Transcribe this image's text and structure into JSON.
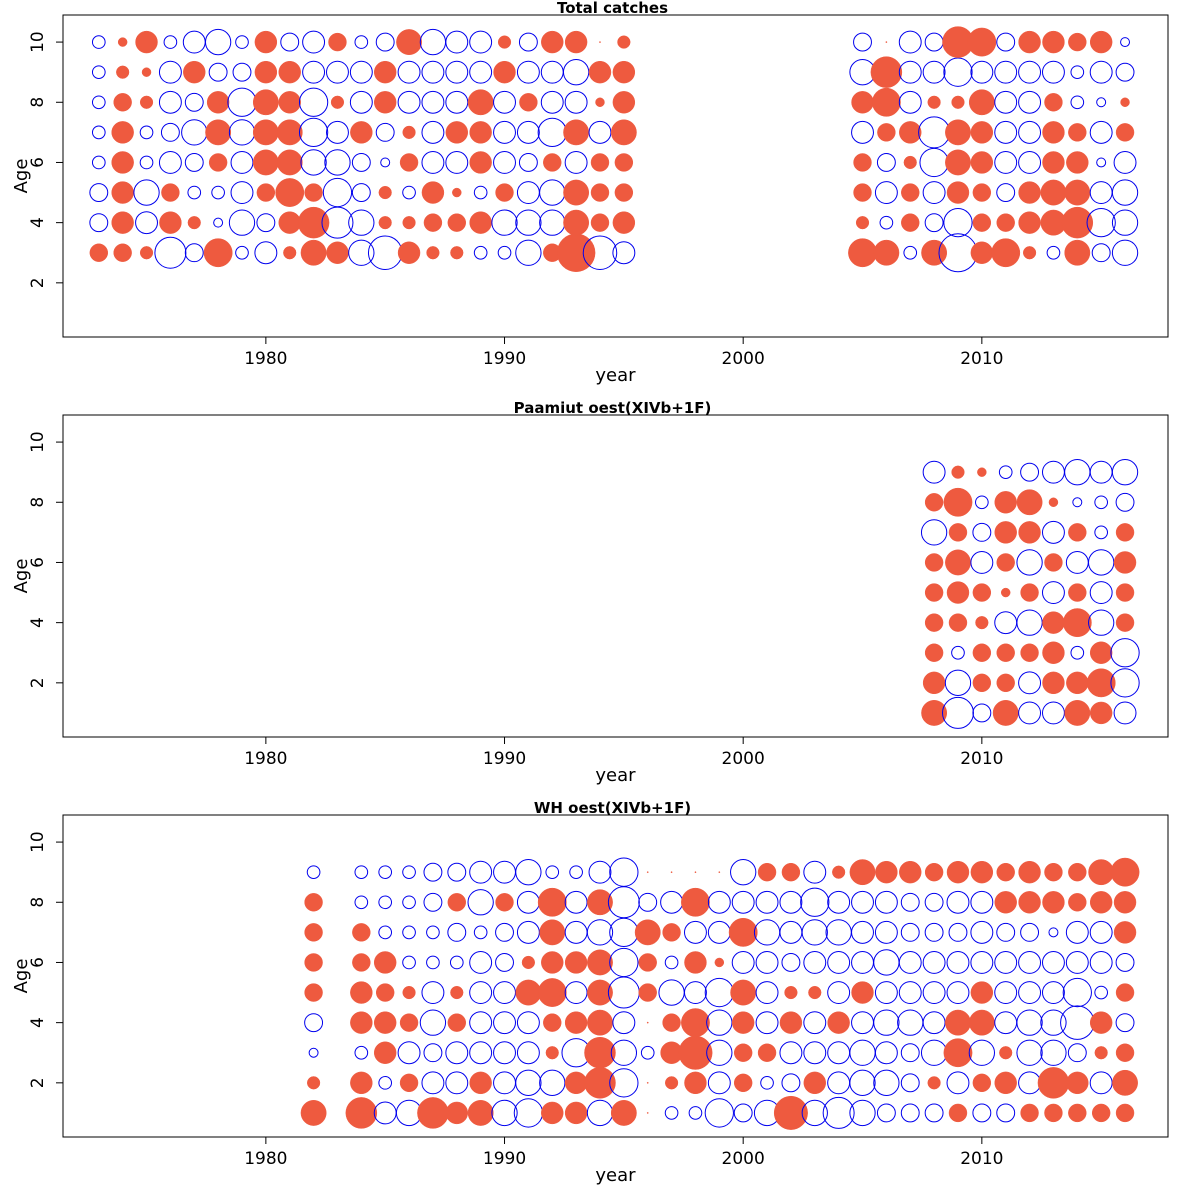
{
  "colors": {
    "positive": "#EE5A3F",
    "negative": "#0000EE"
  },
  "chart_data": [
    {
      "type": "scatter",
      "subtype": "bubble-residuals",
      "title": "Total catches",
      "xlabel": "year",
      "ylabel": "Age",
      "xlim": [
        1971.5,
        2017.8
      ],
      "ylim": [
        0.2,
        10.9
      ],
      "xticks": [
        1980,
        1990,
        2000,
        2010
      ],
      "yticks": [
        2,
        4,
        6,
        8,
        10
      ],
      "ages": [
        3,
        4,
        5,
        6,
        7,
        8,
        9,
        10
      ],
      "years": [
        1973,
        1974,
        1975,
        1976,
        1977,
        1978,
        1979,
        1980,
        1981,
        1982,
        1983,
        1984,
        1985,
        1986,
        1987,
        1988,
        1989,
        1990,
        1991,
        1992,
        1993,
        1994,
        1995,
        2005,
        2006,
        2007,
        2008,
        2009,
        2010,
        2011,
        2012,
        2013,
        2014,
        2015,
        2016
      ],
      "residuals": [
        [
          0.2,
          0.2,
          0.1,
          -0.6,
          -0.2,
          0.5,
          -0.1,
          -0.3,
          0.1,
          0.4,
          0.3,
          -0.4,
          -0.7,
          0.3,
          0.1,
          0.1,
          -0.1,
          -0.1,
          -0.4,
          0.2,
          0.9,
          -0.7,
          -0.3,
          0.5,
          0.4,
          -0.1,
          0.4,
          -0.9,
          0.3,
          0.5,
          0.1,
          -0.1,
          0.4,
          -0.2,
          -0.4
        ],
        [
          -0.2,
          0.3,
          -0.3,
          0.3,
          0.1,
          -0.05,
          -0.4,
          -0.2,
          0.3,
          0.6,
          -0.6,
          -0.4,
          0.1,
          0.1,
          0.2,
          0.2,
          0.3,
          -0.4,
          -0.4,
          -0.4,
          0.4,
          0.2,
          0.3,
          0.1,
          -0.1,
          0.2,
          -0.2,
          -0.5,
          0.2,
          0.2,
          0.3,
          0.4,
          0.6,
          -0.5,
          -0.4
        ],
        [
          -0.2,
          0.3,
          -0.4,
          0.2,
          -0.1,
          -0.1,
          -0.3,
          0.2,
          0.5,
          0.2,
          -0.5,
          -0.2,
          0.1,
          -0.1,
          0.3,
          0.05,
          -0.1,
          0.2,
          -0.3,
          -0.4,
          0.4,
          0.2,
          0.2,
          0.2,
          -0.3,
          0.2,
          -0.3,
          0.3,
          0.2,
          -0.2,
          0.3,
          0.4,
          0.4,
          -0.3,
          -0.4
        ],
        [
          -0.1,
          0.3,
          -0.1,
          -0.3,
          -0.2,
          0.2,
          -0.3,
          0.4,
          0.4,
          -0.4,
          -0.4,
          -0.2,
          -0.05,
          0.2,
          -0.3,
          -0.3,
          0.3,
          -0.3,
          -0.2,
          0.2,
          -0.3,
          0.2,
          0.2,
          0.2,
          -0.2,
          0.1,
          -0.5,
          0.4,
          0.3,
          -0.3,
          -0.3,
          0.3,
          0.3,
          -0.05,
          -0.3
        ],
        [
          -0.1,
          0.3,
          -0.1,
          -0.2,
          -0.4,
          0.4,
          -0.4,
          0.4,
          0.4,
          -0.5,
          -0.3,
          0.3,
          -0.2,
          0.1,
          -0.3,
          0.3,
          0.3,
          -0.3,
          -0.3,
          -0.5,
          0.4,
          -0.3,
          0.4,
          -0.3,
          0.2,
          0.3,
          -0.6,
          0.4,
          0.3,
          -0.3,
          -0.3,
          0.3,
          0.2,
          -0.3,
          0.2
        ],
        [
          -0.1,
          0.2,
          0.1,
          -0.3,
          -0.2,
          0.3,
          -0.5,
          0.4,
          0.3,
          -0.5,
          0.1,
          -0.3,
          0.3,
          -0.3,
          -0.3,
          -0.3,
          0.4,
          -0.3,
          0.2,
          -0.3,
          -0.3,
          0.05,
          0.3,
          0.3,
          0.5,
          -0.3,
          0.1,
          0.1,
          0.4,
          -0.3,
          -0.3,
          0.2,
          -0.1,
          -0.05,
          0.05
        ],
        [
          -0.1,
          0.1,
          0.05,
          -0.3,
          0.3,
          -0.2,
          -0.2,
          0.3,
          0.3,
          -0.3,
          -0.3,
          -0.3,
          0.3,
          -0.3,
          -0.3,
          -0.3,
          -0.3,
          0.3,
          -0.3,
          -0.3,
          -0.4,
          0.3,
          0.3,
          -0.4,
          0.6,
          -0.3,
          -0.3,
          -0.5,
          -0.3,
          -0.3,
          -0.3,
          -0.3,
          -0.1,
          -0.3,
          -0.2
        ],
        [
          -0.1,
          0.05,
          0.3,
          -0.1,
          -0.3,
          -0.4,
          -0.1,
          0.3,
          -0.2,
          -0.3,
          0.2,
          -0.1,
          -0.2,
          0.4,
          -0.4,
          -0.3,
          -0.3,
          0.1,
          -0.2,
          0.3,
          0.3,
          0,
          0.1,
          -0.2,
          0,
          -0.3,
          -0.2,
          0.6,
          0.5,
          -0.2,
          0.3,
          0.3,
          0.2,
          0.3,
          -0.05
        ]
      ]
    },
    {
      "type": "scatter",
      "subtype": "bubble-residuals",
      "title": "Paamiut    oest(XIVb+1F)",
      "xlabel": "year",
      "ylabel": "Age",
      "xlim": [
        1971.5,
        2017.8
      ],
      "ylim": [
        0.2,
        10.9
      ],
      "xticks": [
        1980,
        1990,
        2000,
        2010
      ],
      "yticks": [
        2,
        4,
        6,
        8,
        10
      ],
      "ages": [
        1,
        2,
        3,
        4,
        5,
        6,
        7,
        8,
        9
      ],
      "years": [
        2008,
        2009,
        2010,
        2011,
        2012,
        2013,
        2014,
        2015,
        2016
      ],
      "residuals": [
        [
          0.4,
          -0.6,
          -0.2,
          0.4,
          -0.3,
          -0.3,
          0.4,
          0.3,
          -0.3
        ],
        [
          0.3,
          -0.4,
          0.2,
          0.2,
          -0.3,
          0.3,
          0.3,
          0.5,
          -0.5
        ],
        [
          0.2,
          -0.1,
          0.2,
          0.2,
          0.2,
          0.3,
          -0.1,
          0.3,
          -0.5
        ],
        [
          0.2,
          0.2,
          0.1,
          -0.3,
          -0.4,
          0.3,
          0.5,
          -0.4,
          0.2
        ],
        [
          0.2,
          0.3,
          0.2,
          0.05,
          0.2,
          -0.3,
          0.2,
          -0.3,
          0.2
        ],
        [
          0.2,
          0.4,
          -0.3,
          0.2,
          -0.4,
          0.2,
          -0.3,
          -0.4,
          0.3
        ],
        [
          -0.4,
          0.2,
          -0.2,
          0.3,
          0.3,
          -0.3,
          0.2,
          -0.1,
          0.2
        ],
        [
          0.2,
          0.5,
          -0.1,
          0.3,
          0.4,
          0.05,
          -0.05,
          -0.1,
          -0.2
        ],
        [
          -0.3,
          0.1,
          0.05,
          -0.1,
          -0.2,
          -0.3,
          -0.4,
          -0.3,
          -0.4
        ]
      ]
    },
    {
      "type": "scatter",
      "subtype": "bubble-residuals",
      "title": "WH    oest(XIVb+1F)",
      "xlabel": "year",
      "ylabel": "Age",
      "xlim": [
        1971.5,
        2017.8
      ],
      "ylim": [
        0.2,
        10.9
      ],
      "xticks": [
        1980,
        1990,
        2000,
        2010
      ],
      "yticks": [
        2,
        4,
        6,
        8,
        10
      ],
      "ages": [
        1,
        2,
        3,
        4,
        5,
        6,
        7,
        8,
        9
      ],
      "years": [
        1982,
        1984,
        1985,
        1986,
        1987,
        1988,
        1989,
        1990,
        1991,
        1992,
        1993,
        1994,
        1995,
        1996,
        1997,
        1998,
        1999,
        2000,
        2001,
        2002,
        2003,
        2004,
        2005,
        2006,
        2007,
        2008,
        2009,
        2010,
        2011,
        2012,
        2013,
        2014,
        2015,
        2016
      ],
      "residuals": [
        [
          0.4,
          0.6,
          -0.3,
          -0.4,
          0.6,
          0.3,
          0.4,
          -0.4,
          -0.5,
          0.3,
          0.3,
          -0.4,
          0.4,
          0,
          -0.1,
          -0.1,
          -0.5,
          -0.2,
          -0.4,
          0.7,
          -0.4,
          -0.6,
          -0.4,
          -0.2,
          -0.2,
          -0.2,
          0.2,
          -0.2,
          -0.2,
          0.2,
          0.2,
          0.2,
          0.2,
          0.2
        ],
        [
          0.1,
          0.3,
          -0.1,
          0.2,
          -0.3,
          -0.3,
          0.3,
          -0.3,
          -0.4,
          -0.4,
          0.3,
          0.6,
          -0.5,
          0,
          0.1,
          0.3,
          -0.3,
          0.2,
          -0.1,
          -0.2,
          0.3,
          -0.3,
          -0.4,
          -0.4,
          -0.2,
          0.1,
          -0.3,
          0.2,
          0.3,
          -0.3,
          0.6,
          0.3,
          -0.3,
          0.4
        ],
        [
          -0.05,
          -0.1,
          0.3,
          -0.3,
          -0.2,
          -0.3,
          -0.3,
          -0.3,
          -0.3,
          0.1,
          -0.5,
          0.6,
          -0.4,
          -0.1,
          0.3,
          0.7,
          -0.4,
          0.2,
          0.2,
          -0.3,
          -0.3,
          -0.3,
          -0.4,
          -0.3,
          -0.2,
          -0.4,
          0.5,
          -0.4,
          0.1,
          -0.4,
          -0.4,
          -0.2,
          0.1,
          0.2
        ],
        [
          -0.2,
          0.3,
          0.3,
          0.2,
          -0.4,
          0.2,
          -0.3,
          -0.3,
          -0.3,
          0.2,
          0.3,
          0.4,
          -0.3,
          0,
          0.2,
          0.5,
          -0.4,
          0.3,
          -0.3,
          0.3,
          -0.3,
          0.3,
          -0.3,
          -0.4,
          -0.4,
          -0.3,
          0.4,
          0.4,
          -0.3,
          -0.4,
          -0.4,
          -0.7,
          0.3,
          -0.2
        ],
        [
          0.2,
          0.3,
          0.2,
          0.1,
          -0.3,
          0.1,
          -0.3,
          -0.3,
          0.4,
          0.5,
          -0.3,
          0.4,
          -0.6,
          0.2,
          -0.4,
          -0.3,
          -0.5,
          0.4,
          -0.3,
          0.1,
          0.1,
          -0.3,
          0.3,
          -0.3,
          -0.3,
          -0.3,
          -0.3,
          0.3,
          -0.3,
          -0.3,
          -0.3,
          -0.5,
          -0.1,
          0.2
        ],
        [
          0.2,
          0.2,
          0.3,
          -0.1,
          -0.1,
          -0.1,
          -0.3,
          -0.2,
          0.1,
          0.3,
          0.3,
          0.4,
          -0.5,
          0.2,
          -0.1,
          0.3,
          0.05,
          -0.3,
          -0.3,
          -0.2,
          -0.3,
          -0.3,
          -0.3,
          -0.4,
          -0.3,
          -0.3,
          -0.3,
          -0.3,
          -0.3,
          -0.3,
          -0.3,
          -0.3,
          -0.3,
          -0.2
        ],
        [
          0.2,
          0.2,
          -0.1,
          -0.1,
          -0.1,
          -0.2,
          -0.1,
          -0.2,
          -0.3,
          0.4,
          -0.3,
          -0.4,
          -0.5,
          0.4,
          0.2,
          -0.3,
          -0.3,
          0.5,
          -0.4,
          -0.3,
          -0.4,
          -0.4,
          -0.3,
          -0.3,
          -0.2,
          -0.2,
          -0.2,
          -0.3,
          -0.2,
          -0.2,
          -0.05,
          -0.3,
          -0.3,
          0.3
        ],
        [
          0.2,
          -0.1,
          -0.1,
          -0.1,
          -0.2,
          0.2,
          -0.4,
          0.2,
          -0.3,
          0.5,
          -0.3,
          0.4,
          -0.6,
          -0.2,
          -0.3,
          0.5,
          -0.3,
          -0.3,
          -0.3,
          -0.3,
          -0.5,
          -0.3,
          -0.3,
          -0.3,
          -0.2,
          -0.2,
          -0.3,
          -0.3,
          0.3,
          0.3,
          0.3,
          0.2,
          0.3,
          0.3
        ],
        [
          -0.1,
          -0.1,
          -0.1,
          -0.1,
          -0.2,
          -0.2,
          -0.3,
          -0.3,
          -0.4,
          -0.1,
          -0.1,
          -0.3,
          -0.5,
          0,
          0,
          0,
          0,
          -0.4,
          0.2,
          0.2,
          -0.3,
          0.1,
          0.4,
          0.3,
          0.3,
          0.2,
          0.3,
          0.3,
          0.2,
          0.3,
          0.2,
          0.2,
          0.4,
          0.5
        ]
      ]
    }
  ]
}
